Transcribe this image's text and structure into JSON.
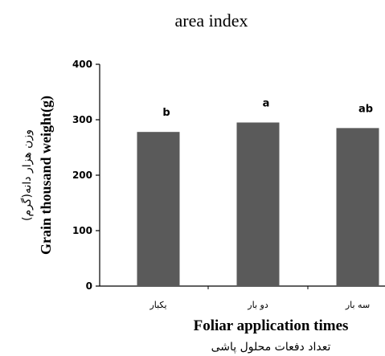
{
  "caption_fragment": "area index",
  "chart_data": {
    "type": "bar",
    "categories": [
      "یکبار",
      "دو بار",
      "سه بار"
    ],
    "values": [
      278,
      295,
      285
    ],
    "significance_letters": [
      "b",
      "a",
      "ab"
    ],
    "xlabel": "Foliar application times",
    "xlabel_fa": "تعداد دفعات محلول پاشی",
    "ylabel": "Grain thousand weight(g)",
    "ylabel_fa": "وزن هزار دانه(گرم)",
    "ylim": [
      0,
      400
    ],
    "yticks": [
      0,
      100,
      200,
      300,
      400
    ],
    "grid": false,
    "bar_color": "#5a5a5a"
  }
}
